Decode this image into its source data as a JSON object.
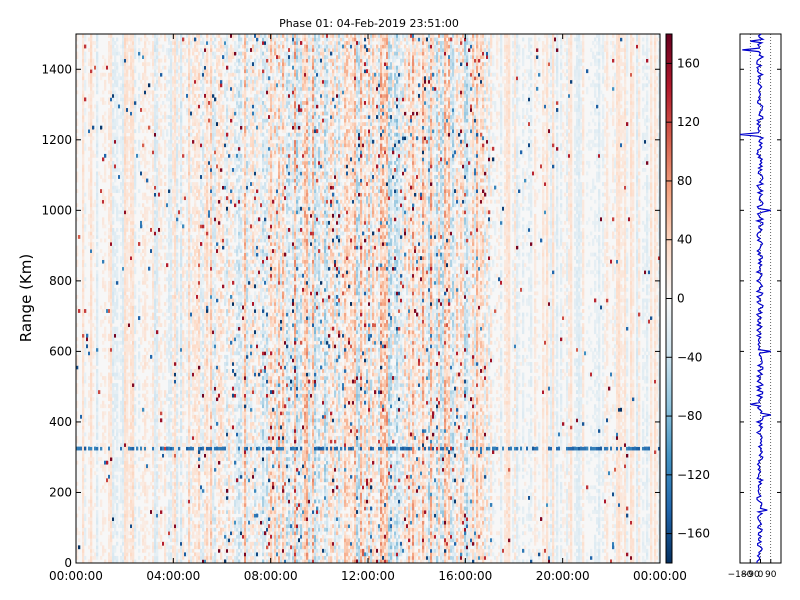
{
  "chart_data": [
    {
      "type": "heatmap",
      "title": "Phase 01: 04-Feb-2019 23:51:00",
      "xlabel": "",
      "ylabel": "Range (Km)",
      "x_ticks": [
        "00:00:00",
        "04:00:00",
        "08:00:00",
        "12:00:00",
        "16:00:00",
        "20:00:00",
        "00:00:00"
      ],
      "x_range_hours": [
        0,
        24
      ],
      "y_ticks": [
        0,
        200,
        400,
        600,
        800,
        1000,
        1200,
        1400
      ],
      "ylim": [
        0,
        1500
      ],
      "colormap": "RdBu_r",
      "value_range": [
        -180,
        180
      ],
      "colorbar_ticks": [
        160,
        120,
        80,
        40,
        0,
        -40,
        -80,
        -120,
        -160
      ],
      "activity_profile_hours": [
        [
          0,
          0.25
        ],
        [
          2,
          0.3
        ],
        [
          4,
          0.35
        ],
        [
          5.5,
          0.55
        ],
        [
          7,
          0.8
        ],
        [
          9,
          1.0
        ],
        [
          11,
          0.9
        ],
        [
          13,
          1.0
        ],
        [
          15,
          0.95
        ],
        [
          16.8,
          0.75
        ],
        [
          17.2,
          0.3
        ],
        [
          20,
          0.25
        ],
        [
          24,
          0.25
        ]
      ],
      "bright_band_range_km": 320
    },
    {
      "type": "line",
      "x_ticks": [
        "−180",
        "−90",
        "0",
        "90"
      ],
      "xlim": [
        -180,
        180
      ],
      "ylim": [
        0,
        1500
      ],
      "color": "#0000cc",
      "spikes": [
        {
          "range_km": 1215,
          "value": -180
        },
        {
          "range_km": 1455,
          "value": -160
        },
        {
          "range_km": 1480,
          "value": -90
        },
        {
          "range_km": 1000,
          "value": 90
        },
        {
          "range_km": 600,
          "value": 90
        },
        {
          "range_km": 450,
          "value": -90
        },
        {
          "range_km": 420,
          "value": 90
        },
        {
          "range_km": 150,
          "value": 60
        }
      ]
    }
  ]
}
